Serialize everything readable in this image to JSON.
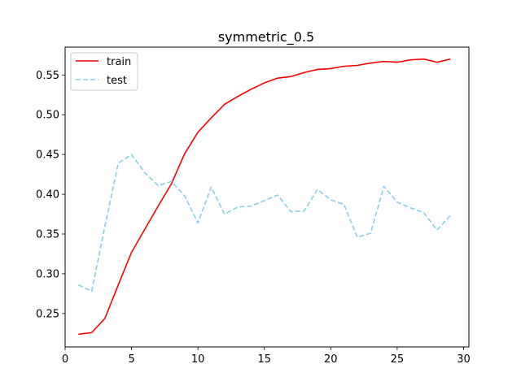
{
  "chart_data": {
    "type": "line",
    "title": "symmetric_0.5",
    "xlabel": "",
    "ylabel": "",
    "xlim": [
      0,
      30.4
    ],
    "ylim": [
      0.208,
      0.585
    ],
    "xticks": [
      0,
      5,
      10,
      15,
      20,
      25,
      30
    ],
    "yticks": [
      0.25,
      0.3,
      0.35,
      0.4,
      0.45,
      0.5,
      0.55
    ],
    "xtick_labels": [
      "0",
      "5",
      "10",
      "15",
      "20",
      "25",
      "30"
    ],
    "ytick_labels": [
      "0.25",
      "0.30",
      "0.35",
      "0.40",
      "0.45",
      "0.50",
      "0.55"
    ],
    "grid": false,
    "legend_position": "top-left",
    "x": [
      1,
      2,
      3,
      4,
      5,
      6,
      7,
      8,
      9,
      10,
      11,
      12,
      13,
      14,
      15,
      16,
      17,
      18,
      19,
      20,
      21,
      22,
      23,
      24,
      25,
      26,
      27,
      28,
      29
    ],
    "series": [
      {
        "name": "train",
        "color": "#ff0000",
        "style": "solid",
        "values": [
          0.224,
          0.226,
          0.244,
          0.286,
          0.327,
          0.356,
          0.385,
          0.413,
          0.451,
          0.478,
          0.496,
          0.513,
          0.523,
          0.532,
          0.54,
          0.546,
          0.548,
          0.553,
          0.557,
          0.558,
          0.561,
          0.562,
          0.565,
          0.567,
          0.566,
          0.569,
          0.57,
          0.566,
          0.57
        ]
      },
      {
        "name": "test",
        "color": "#87ceeb",
        "style": "dashed",
        "values": [
          0.286,
          0.278,
          0.36,
          0.439,
          0.45,
          0.427,
          0.411,
          0.416,
          0.398,
          0.364,
          0.409,
          0.375,
          0.384,
          0.385,
          0.392,
          0.399,
          0.378,
          0.379,
          0.406,
          0.393,
          0.387,
          0.346,
          0.351,
          0.41,
          0.39,
          0.383,
          0.377,
          0.355,
          0.373
        ]
      }
    ]
  }
}
